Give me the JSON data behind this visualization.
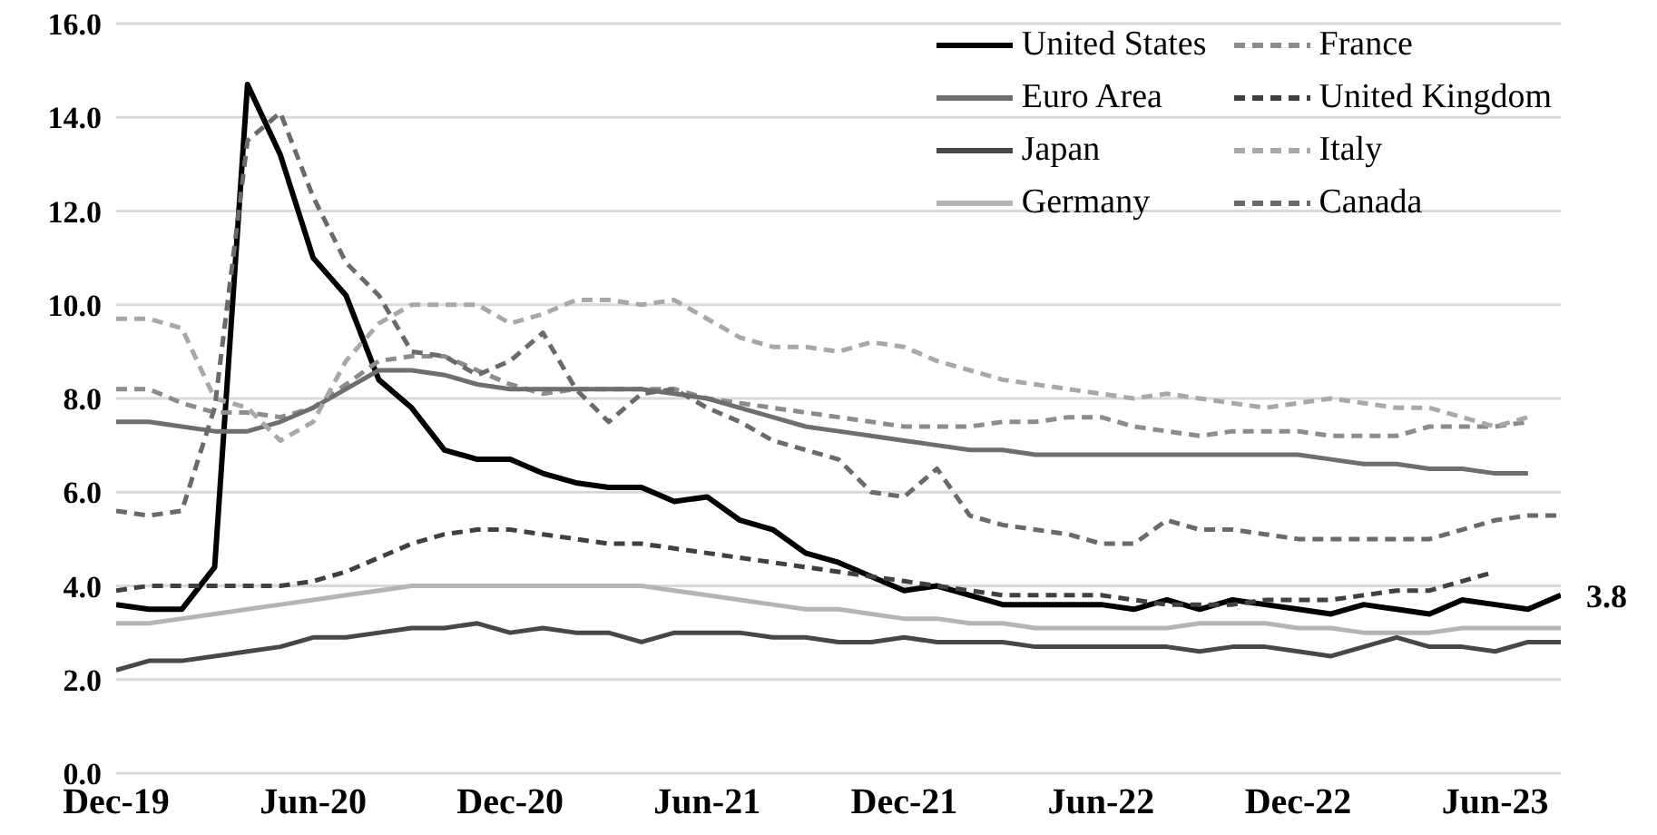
{
  "chart_data": {
    "type": "line",
    "categories": [
      "Dec-19",
      null,
      null,
      null,
      null,
      null,
      "Jun-20",
      null,
      null,
      null,
      null,
      null,
      "Dec-20",
      null,
      null,
      null,
      null,
      null,
      "Jun-21",
      null,
      null,
      null,
      null,
      null,
      "Dec-21",
      null,
      null,
      null,
      null,
      null,
      "Jun-22",
      null,
      null,
      null,
      null,
      null,
      "Dec-22",
      null,
      null,
      null,
      null,
      null,
      "Jun-23",
      null,
      null
    ],
    "series": [
      {
        "name": "United States",
        "color": "#000000",
        "line_style": "solid",
        "values": [
          3.6,
          3.5,
          3.5,
          4.4,
          14.7,
          13.2,
          11.0,
          10.2,
          8.4,
          7.8,
          6.9,
          6.7,
          6.7,
          6.4,
          6.2,
          6.1,
          6.1,
          5.8,
          5.9,
          5.4,
          5.2,
          4.7,
          4.5,
          4.2,
          3.9,
          4.0,
          3.8,
          3.6,
          3.6,
          3.6,
          3.6,
          3.5,
          3.7,
          3.5,
          3.7,
          3.6,
          3.5,
          3.4,
          3.6,
          3.5,
          3.4,
          3.7,
          3.6,
          3.5,
          3.8
        ]
      },
      {
        "name": "France",
        "color": "#8c8c8c",
        "line_style": "dashed",
        "values": [
          8.2,
          8.2,
          7.9,
          7.7,
          7.7,
          7.6,
          7.8,
          8.3,
          8.8,
          8.9,
          8.9,
          8.6,
          8.3,
          8.1,
          8.2,
          8.2,
          8.2,
          8.2,
          8.0,
          7.9,
          7.8,
          7.7,
          7.6,
          7.5,
          7.4,
          7.4,
          7.4,
          7.5,
          7.5,
          7.6,
          7.6,
          7.4,
          7.3,
          7.2,
          7.3,
          7.3,
          7.3,
          7.2,
          7.2,
          7.2,
          7.4,
          7.4,
          7.4,
          7.5,
          null
        ]
      },
      {
        "name": "Euro Area",
        "color": "#6e6e6e",
        "line_style": "solid",
        "values": [
          7.5,
          7.5,
          7.4,
          7.3,
          7.3,
          7.5,
          7.8,
          8.2,
          8.6,
          8.6,
          8.5,
          8.3,
          8.2,
          8.2,
          8.2,
          8.2,
          8.2,
          8.1,
          8.0,
          7.8,
          7.6,
          7.4,
          7.3,
          7.2,
          7.1,
          7.0,
          6.9,
          6.9,
          6.8,
          6.8,
          6.8,
          6.8,
          6.8,
          6.8,
          6.8,
          6.8,
          6.8,
          6.7,
          6.6,
          6.6,
          6.5,
          6.5,
          6.4,
          6.4,
          null
        ]
      },
      {
        "name": "United Kingdom",
        "color": "#404040",
        "line_style": "dashed",
        "values": [
          3.9,
          4.0,
          4.0,
          4.0,
          4.0,
          4.0,
          4.1,
          4.3,
          4.6,
          4.9,
          5.1,
          5.2,
          5.2,
          5.1,
          5.0,
          4.9,
          4.9,
          4.8,
          4.7,
          4.6,
          4.5,
          4.4,
          4.3,
          4.2,
          4.1,
          4.0,
          3.9,
          3.8,
          3.8,
          3.8,
          3.8,
          3.7,
          3.6,
          3.6,
          3.6,
          3.7,
          3.7,
          3.7,
          3.8,
          3.9,
          3.9,
          4.1,
          4.3,
          null,
          null
        ]
      },
      {
        "name": "Japan",
        "color": "#474747",
        "line_style": "solid",
        "values": [
          2.2,
          2.4,
          2.4,
          2.5,
          2.6,
          2.7,
          2.9,
          2.9,
          3.0,
          3.1,
          3.1,
          3.2,
          3.0,
          3.1,
          3.0,
          3.0,
          2.8,
          3.0,
          3.0,
          3.0,
          2.9,
          2.9,
          2.8,
          2.8,
          2.9,
          2.8,
          2.8,
          2.8,
          2.7,
          2.7,
          2.7,
          2.7,
          2.7,
          2.6,
          2.7,
          2.7,
          2.6,
          2.5,
          2.7,
          2.9,
          2.7,
          2.7,
          2.6,
          2.8,
          2.8
        ]
      },
      {
        "name": "Italy",
        "color": "#a8a8a8",
        "line_style": "dashed",
        "values": [
          9.7,
          9.7,
          9.5,
          8.0,
          7.8,
          7.1,
          7.5,
          8.8,
          9.6,
          10.0,
          10.0,
          10.0,
          9.6,
          9.8,
          10.1,
          10.1,
          10.0,
          10.1,
          9.7,
          9.3,
          9.1,
          9.1,
          9.0,
          9.2,
          9.1,
          8.8,
          8.6,
          8.4,
          8.3,
          8.2,
          8.1,
          8.0,
          8.1,
          8.0,
          7.9,
          7.8,
          7.9,
          8.0,
          7.9,
          7.8,
          7.8,
          7.6,
          7.4,
          7.6,
          null
        ]
      },
      {
        "name": "Germany",
        "color": "#b4b4b4",
        "line_style": "solid",
        "values": [
          3.2,
          3.2,
          3.3,
          3.4,
          3.5,
          3.6,
          3.7,
          3.8,
          3.9,
          4.0,
          4.0,
          4.0,
          4.0,
          4.0,
          4.0,
          4.0,
          4.0,
          3.9,
          3.8,
          3.7,
          3.6,
          3.5,
          3.5,
          3.4,
          3.3,
          3.3,
          3.2,
          3.2,
          3.1,
          3.1,
          3.1,
          3.1,
          3.1,
          3.2,
          3.2,
          3.2,
          3.1,
          3.1,
          3.0,
          3.0,
          3.0,
          3.1,
          3.1,
          3.1,
          3.1
        ]
      },
      {
        "name": "Canada",
        "color": "#6a6a6a",
        "line_style": "dashed",
        "values": [
          5.6,
          5.5,
          5.6,
          7.8,
          13.5,
          14.1,
          12.3,
          10.9,
          10.2,
          9.0,
          8.9,
          8.5,
          8.8,
          9.4,
          8.2,
          7.5,
          8.1,
          8.2,
          7.8,
          7.5,
          7.1,
          6.9,
          6.7,
          6.0,
          5.9,
          6.5,
          5.5,
          5.3,
          5.2,
          5.1,
          4.9,
          4.9,
          5.4,
          5.2,
          5.2,
          5.1,
          5.0,
          5.0,
          5.0,
          5.0,
          5.0,
          5.2,
          5.4,
          5.5,
          5.5
        ]
      }
    ],
    "ylim": [
      0,
      16
    ],
    "yticks": [
      {
        "value": 0,
        "label": "0.0"
      },
      {
        "value": 2,
        "label": "2.0"
      },
      {
        "value": 4,
        "label": "4.0"
      },
      {
        "value": 6,
        "label": "6.0"
      },
      {
        "value": 8,
        "label": "8.0"
      },
      {
        "value": 10,
        "label": "10.0"
      },
      {
        "value": 12,
        "label": "12.0"
      },
      {
        "value": 14,
        "label": "14.0"
      },
      {
        "value": 16,
        "label": "16.0"
      }
    ],
    "grid": "y",
    "legend": "top right",
    "marker": "none",
    "annotations": [
      "3.8"
    ]
  }
}
